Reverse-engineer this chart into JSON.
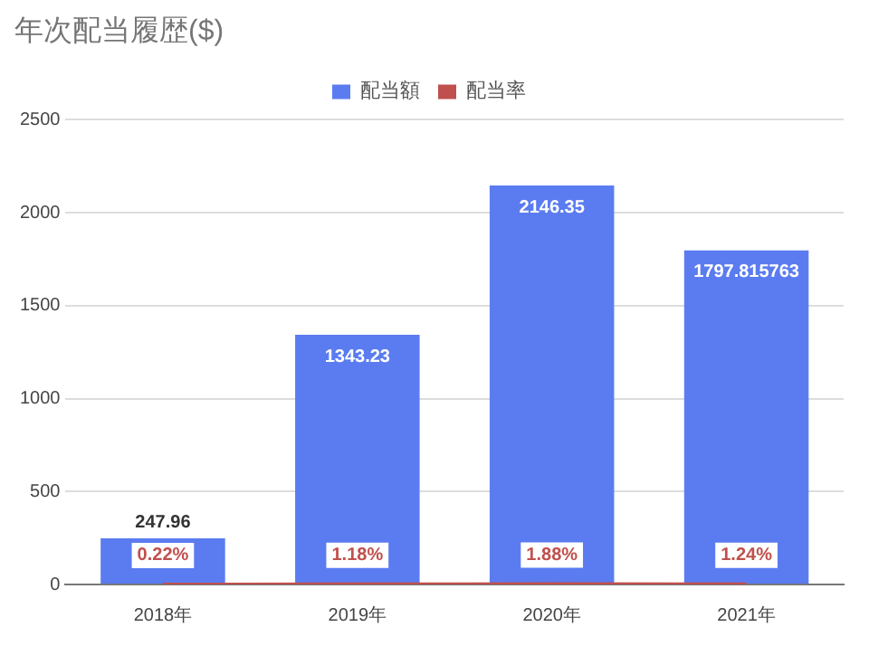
{
  "chart_data": {
    "type": "bar",
    "title": "年次配当履歴($)",
    "categories": [
      "2018年",
      "2019年",
      "2020年",
      "2021年"
    ],
    "series": [
      {
        "name": "配当額",
        "color": "#5b7cf0",
        "values": [
          247.96,
          1343.23,
          2146.35,
          1797.815763
        ],
        "value_labels": [
          "247.96",
          "1343.23",
          "2146.35",
          "1797.815763"
        ]
      },
      {
        "name": "配当率",
        "type": "line",
        "color": "#c0504d",
        "values": [
          0.22,
          1.18,
          1.88,
          1.24
        ],
        "value_labels": [
          "0.22%",
          "1.18%",
          "1.88%",
          "1.24%"
        ]
      }
    ],
    "ylim": [
      0,
      2500
    ],
    "yticks": [
      0,
      500,
      1000,
      1500,
      2000,
      2500
    ],
    "grid": "y",
    "legend": "top",
    "marker": "none"
  }
}
